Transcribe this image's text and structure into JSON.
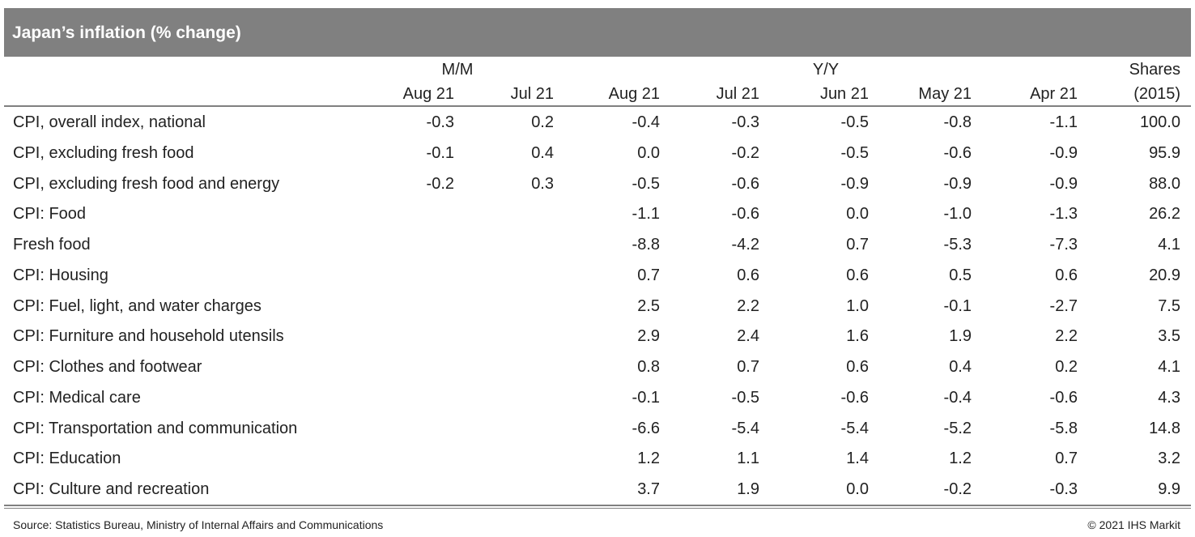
{
  "header": {
    "title": "Japan’s inflation (% change)"
  },
  "table": {
    "groups": [
      "M/M",
      "Y/Y",
      "Shares"
    ],
    "columns": [
      "Aug 21",
      "Jul 21",
      "Aug 21",
      "Jul 21",
      "Jun 21",
      "May 21",
      "Apr 21",
      "(2015)"
    ],
    "rows": [
      {
        "label": "CPI, overall index, national",
        "cells": [
          "-0.3",
          "0.2",
          "-0.4",
          "-0.3",
          "-0.5",
          "-0.8",
          "-1.1",
          "100.0"
        ]
      },
      {
        "label": "CPI, excluding fresh food",
        "cells": [
          "-0.1",
          "0.4",
          "0.0",
          "-0.2",
          "-0.5",
          "-0.6",
          "-0.9",
          "95.9"
        ]
      },
      {
        "label": "CPI, excluding fresh food and energy",
        "cells": [
          "-0.2",
          "0.3",
          "-0.5",
          "-0.6",
          "-0.9",
          "-0.9",
          "-0.9",
          "88.0"
        ]
      },
      {
        "label": "CPI: Food",
        "cells": [
          null,
          null,
          "-1.1",
          "-0.6",
          "0.0",
          "-1.0",
          "-1.3",
          "26.2"
        ]
      },
      {
        "label": "Fresh food",
        "cells": [
          null,
          null,
          "-8.8",
          "-4.2",
          "0.7",
          "-5.3",
          "-7.3",
          "4.1"
        ]
      },
      {
        "label": "CPI: Housing",
        "cells": [
          null,
          null,
          "0.7",
          "0.6",
          "0.6",
          "0.5",
          "0.6",
          "20.9"
        ]
      },
      {
        "label": "CPI: Fuel, light, and water charges",
        "cells": [
          null,
          null,
          "2.5",
          "2.2",
          "1.0",
          "-0.1",
          "-2.7",
          "7.5"
        ]
      },
      {
        "label": "CPI: Furniture and household utensils",
        "cells": [
          null,
          null,
          "2.9",
          "2.4",
          "1.6",
          "1.9",
          "2.2",
          "3.5"
        ]
      },
      {
        "label": "CPI: Clothes and footwear",
        "cells": [
          null,
          null,
          "0.8",
          "0.7",
          "0.6",
          "0.4",
          "0.2",
          "4.1"
        ]
      },
      {
        "label": "CPI: Medical care",
        "cells": [
          null,
          null,
          "-0.1",
          "-0.5",
          "-0.6",
          "-0.4",
          "-0.6",
          "4.3"
        ]
      },
      {
        "label": "CPI: Transportation and communication",
        "cells": [
          null,
          null,
          "-6.6",
          "-5.4",
          "-5.4",
          "-5.2",
          "-5.8",
          "14.8"
        ]
      },
      {
        "label": "CPI: Education",
        "cells": [
          null,
          null,
          "1.2",
          "1.1",
          "1.4",
          "1.2",
          "0.7",
          "3.2"
        ]
      },
      {
        "label": "CPI: Culture and recreation",
        "cells": [
          null,
          null,
          "3.7",
          "1.9",
          "0.0",
          "-0.2",
          "-0.3",
          "9.9"
        ]
      }
    ]
  },
  "footer": {
    "source": "Source: Statistics Bureau, Ministry of Internal Affairs and Communications",
    "copyright": "© 2021 IHS Markit"
  }
}
